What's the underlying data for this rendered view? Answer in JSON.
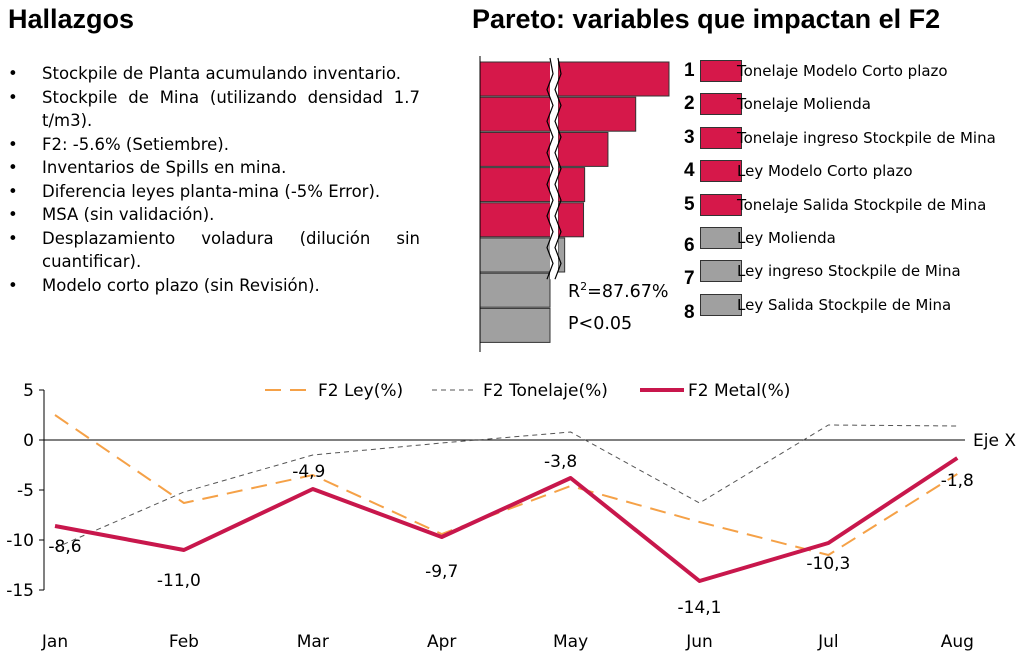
{
  "slide": {
    "findings_title": "Hallazgos",
    "pareto_title": "Pareto: variables que impactan el F2",
    "bullet_char": "•",
    "findings": [
      "Stockpile de Planta acumulando inventario.",
      "Stockpile de Mina (utilizando densidad 1.7 t/m3).",
      "F2: -5.6% (Setiembre).",
      "Inventarios de Spills en mina.",
      "Diferencia leyes planta-mina (-5% Error).",
      "MSA (sin validación).",
      "Desplazamiento voladura (dilución sin cuantificar).",
      "Modelo corto plazo (sin Revisión)."
    ]
  },
  "colors": {
    "significant": "#d6184a",
    "not_significant": "#a0a0a0",
    "f2_ley": "#f5a147",
    "f2_tonelaje": "#555555",
    "f2_metal": "#c8174c"
  },
  "chart_data": [
    {
      "type": "bar",
      "orientation": "horizontal",
      "axis_break": true,
      "title": "Pareto: variables que impactan el F2",
      "stats": {
        "r2_label": "R",
        "r2_sup": "2",
        "r2_value": "=87.67%",
        "p_label": "P<0.05"
      },
      "items": [
        {
          "rank": "1",
          "label": "Tonelaje Modelo Corto plazo",
          "value": 100,
          "significant": true
        },
        {
          "rank": "2",
          "label": "Tonelaje Molienda",
          "value": 70,
          "significant": true
        },
        {
          "rank": "3",
          "label": "Tonelaje ingreso Stockpile de Mina",
          "value": 45,
          "significant": true
        },
        {
          "rank": "4",
          "label": "Ley Modelo Corto plazo",
          "value": 24,
          "significant": true
        },
        {
          "rank": "5",
          "label": "Tonelaje Salida Stockpile de Mina",
          "value": 23,
          "significant": true
        },
        {
          "rank": "6",
          "label": "Ley Molienda",
          "value": 6,
          "significant": false
        },
        {
          "rank": "7",
          "label": "Ley ingreso Stockpile de Mina",
          "value": -5,
          "significant": false
        },
        {
          "rank": "8",
          "label": "Ley Salida Stockpile de Mina",
          "value": -5,
          "significant": false
        }
      ]
    },
    {
      "type": "line",
      "categories": [
        "Jan",
        "Feb",
        "Mar",
        "Apr",
        "May",
        "Jun",
        "Jul",
        "Aug"
      ],
      "ylim": [
        -15,
        5
      ],
      "yticks": [
        5,
        0,
        -5,
        -10,
        -15
      ],
      "ytick_labels": [
        "5",
        "0",
        "-5",
        "-10",
        "-15"
      ],
      "zero_line_label": "Eje X",
      "grid": false,
      "legend_position": "top",
      "series": [
        {
          "name": "F2 Ley(%)",
          "style": "dashed",
          "values": [
            2.5,
            -6.3,
            -3.5,
            -9.4,
            -4.6,
            -8.2,
            -11.5,
            -3.4
          ]
        },
        {
          "name": "F2 Tonelaje(%)",
          "style": "dotted",
          "values": [
            -10.8,
            -5.2,
            -1.5,
            -0.3,
            0.8,
            -6.3,
            1.5,
            1.4
          ]
        },
        {
          "name": "F2 Metal(%)",
          "style": "solid",
          "values": [
            -8.6,
            -11.0,
            -4.9,
            -9.7,
            -3.8,
            -14.1,
            -10.3,
            -1.8
          ],
          "data_labels": [
            "-8,6",
            "-11,0",
            "-4,9",
            "-9,7",
            "-3,8",
            "-14,1",
            "-10,3",
            "-1,8"
          ]
        }
      ]
    }
  ]
}
